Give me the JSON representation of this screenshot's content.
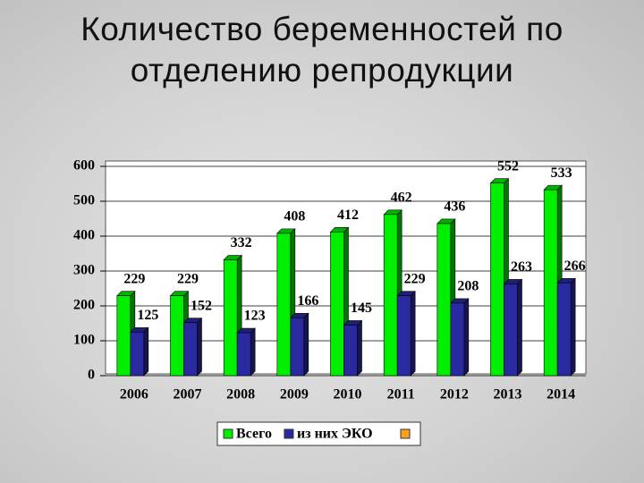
{
  "chart_data": {
    "type": "bar3d",
    "title": "Количество беременностей по  отделению репродукции",
    "categories": [
      "2006",
      "2007",
      "2008",
      "2009",
      "2010",
      "2011",
      "2012",
      "2013",
      "2014"
    ],
    "series": [
      {
        "name": "Всего",
        "color": "#00ee00",
        "values": [
          229,
          229,
          332,
          408,
          412,
          462,
          436,
          552,
          533
        ]
      },
      {
        "name": "из них ЭКО",
        "color": "#2a2aa0",
        "values": [
          125,
          152,
          123,
          166,
          145,
          229,
          208,
          263,
          266
        ]
      }
    ],
    "ylim": [
      0,
      600
    ],
    "yticks": [
      0,
      100,
      200,
      300,
      400,
      500,
      600
    ],
    "grid": true,
    "legend": "bottom"
  }
}
